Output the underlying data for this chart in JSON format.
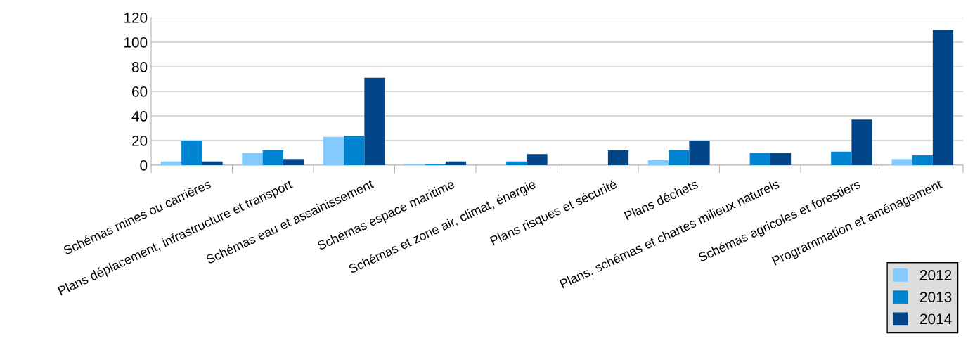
{
  "chart_data": {
    "type": "bar",
    "categories": [
      "Schémas mines ou carrières",
      "Plans déplacement, infrastructure et transport",
      "Schémas eau et assainissement",
      "Schémas espace maritime",
      "Schémas et zone air, climat, énergie",
      "Plans risques et sécurité",
      "Plans déchets",
      "Plans, schémas et chartes milieux naturels",
      "Schémas agricoles et forestiers",
      "Programmation et aménagement"
    ],
    "series": [
      {
        "name": "2012",
        "color": "#83caff",
        "values": [
          3,
          10,
          23,
          1,
          null,
          null,
          4,
          null,
          null,
          5
        ]
      },
      {
        "name": "2013",
        "color": "#0084d1",
        "values": [
          20,
          12,
          24,
          1,
          3,
          null,
          12,
          10,
          11,
          8
        ]
      },
      {
        "name": "2014",
        "color": "#004586",
        "values": [
          3,
          5,
          71,
          3,
          9,
          12,
          20,
          10,
          37,
          110
        ]
      }
    ],
    "ylim": [
      0,
      120
    ],
    "yticks": [
      0,
      20,
      40,
      60,
      80,
      100,
      120
    ],
    "grid": "y",
    "legend": "bottom right"
  }
}
